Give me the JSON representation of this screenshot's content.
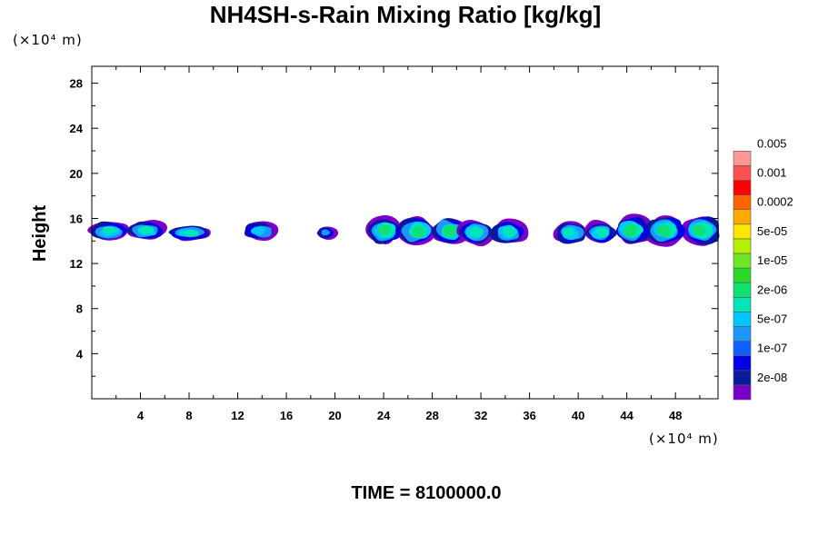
{
  "chart_data": {
    "type": "heatmap",
    "title": "NH4SH-s-Rain Mixing Ratio [kg/kg]",
    "ylabel": "Height",
    "x_unit_label": "(×10⁴ m)",
    "y_unit_label": "(×10⁴ m)",
    "footer": "TIME = 8100000.0",
    "xlim": [
      0,
      51.5
    ],
    "ylim": [
      0,
      29.5
    ],
    "x_ticks": [
      4,
      8,
      12,
      16,
      20,
      24,
      28,
      32,
      36,
      40,
      44,
      48
    ],
    "y_ticks": [
      4,
      8,
      12,
      16,
      20,
      24,
      28
    ],
    "x_tick_labels": [
      "4",
      "8",
      "12",
      "16",
      "20",
      "24",
      "28",
      "32",
      "36",
      "40",
      "44",
      "48"
    ],
    "y_tick_labels": [
      "4",
      "8",
      "12",
      "16",
      "20",
      "24",
      "28"
    ],
    "colorbar": {
      "colors": [
        "#7a00c8",
        "#0a1a9a",
        "#0000e6",
        "#1060ff",
        "#1e96ff",
        "#00c8ff",
        "#00e6b4",
        "#10e070",
        "#28d828",
        "#6ee628",
        "#b4f000",
        "#ffe600",
        "#ffaa00",
        "#ff6400",
        "#ff0000",
        "#ff5050",
        "#ff9696"
      ],
      "labels": [
        "2e-08",
        "1e-07",
        "5e-07",
        "2e-06",
        "1e-05",
        "5e-05",
        "0.0002",
        "0.001",
        "0.005"
      ],
      "label_slots": [
        1,
        3,
        5,
        7,
        9,
        11,
        13,
        15,
        17
      ]
    },
    "clouds": [
      {
        "x0": 0.0,
        "x1": 5.9,
        "y0": 14.0,
        "y1": 15.8,
        "level": 0.55
      },
      {
        "x0": 6.5,
        "x1": 9.6,
        "y0": 14.0,
        "y1": 15.4,
        "level": 0.5
      },
      {
        "x0": 12.5,
        "x1": 15.1,
        "y0": 14.0,
        "y1": 15.8,
        "level": 0.35
      },
      {
        "x0": 18.5,
        "x1": 20.0,
        "y0": 14.1,
        "y1": 15.3,
        "level": 0.15
      },
      {
        "x0": 22.8,
        "x1": 30.7,
        "y0": 13.6,
        "y1": 16.2,
        "level": 0.6
      },
      {
        "x0": 30.3,
        "x1": 35.5,
        "y0": 13.6,
        "y1": 15.9,
        "level": 0.55
      },
      {
        "x0": 38.2,
        "x1": 43.0,
        "y0": 13.7,
        "y1": 15.8,
        "level": 0.5
      },
      {
        "x0": 43.0,
        "x1": 51.5,
        "y0": 13.6,
        "y1": 16.3,
        "level": 0.6
      }
    ]
  }
}
